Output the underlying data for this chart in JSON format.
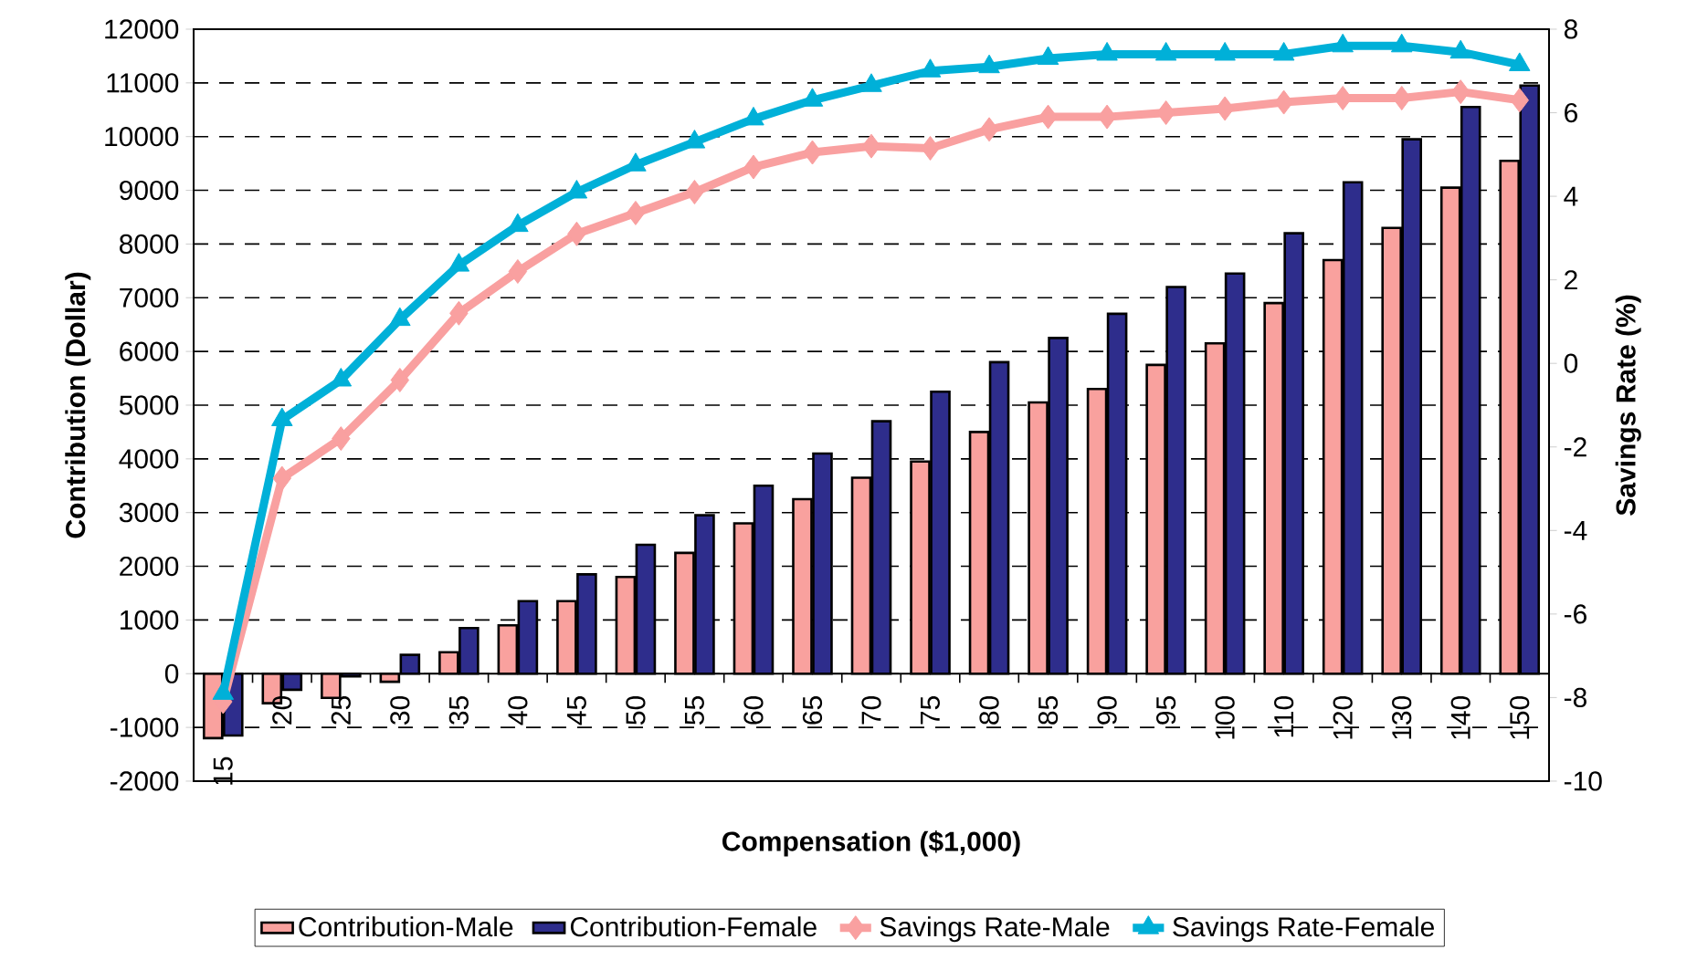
{
  "chart_data": {
    "type": "bar",
    "xlabel": "Compensation ($1,000)",
    "ylabel": "Contribution (Dollar)",
    "y2label": "Savings Rate (%)",
    "categories": [
      "15",
      "20",
      "25",
      "30",
      "35",
      "40",
      "45",
      "50",
      "55",
      "60",
      "65",
      "70",
      "75",
      "80",
      "85",
      "90",
      "95",
      "100",
      "110",
      "120",
      "130",
      "140",
      "150"
    ],
    "ylim": [
      -2000,
      12000
    ],
    "yticks": [
      -2000,
      -1000,
      0,
      1000,
      2000,
      3000,
      4000,
      5000,
      6000,
      7000,
      8000,
      9000,
      10000,
      11000,
      12000
    ],
    "y2lim": [
      -10,
      8
    ],
    "y2ticks": [
      -10,
      -8,
      -6,
      -4,
      -2,
      0,
      2,
      4,
      6,
      8
    ],
    "grid": "y",
    "legend": "bottom",
    "series": [
      {
        "name": "Contribution-Male",
        "color": "#f9a19e",
        "values": [
          -1200,
          -550,
          -450,
          -150,
          400,
          900,
          1350,
          1800,
          2250,
          2800,
          3250,
          3650,
          3950,
          4500,
          5050,
          5300,
          5750,
          6150,
          6900,
          7700,
          8300,
          9050,
          9550
        ]
      },
      {
        "name": "Contribution-Female",
        "color": "#2e2d8c",
        "values": [
          -1150,
          -300,
          -50,
          350,
          850,
          1350,
          1850,
          2400,
          2950,
          3500,
          4100,
          4700,
          5250,
          5800,
          6250,
          6700,
          7200,
          7450,
          8200,
          9150,
          9950,
          10550,
          10950
        ]
      },
      {
        "name": "Savings Rate-Male",
        "type": "line",
        "axis": "y2",
        "marker": "diamond",
        "color": "#f9a0a0",
        "values": [
          -8.1,
          -2.75,
          -1.8,
          -0.4,
          1.2,
          2.2,
          3.1,
          3.6,
          4.1,
          4.7,
          5.05,
          5.2,
          5.15,
          5.6,
          5.9,
          5.9,
          6.0,
          6.1,
          6.25,
          6.35,
          6.35,
          6.5,
          6.3
        ]
      },
      {
        "name": "Savings Rate-Female",
        "type": "line",
        "axis": "y2",
        "marker": "triangle",
        "color": "#00b0d8",
        "values": [
          -7.9,
          -1.35,
          -0.4,
          1.05,
          2.35,
          3.3,
          4.1,
          4.75,
          5.3,
          5.85,
          6.3,
          6.65,
          7.0,
          7.1,
          7.3,
          7.4,
          7.4,
          7.4,
          7.4,
          7.6,
          7.6,
          7.45,
          7.15
        ]
      }
    ]
  }
}
